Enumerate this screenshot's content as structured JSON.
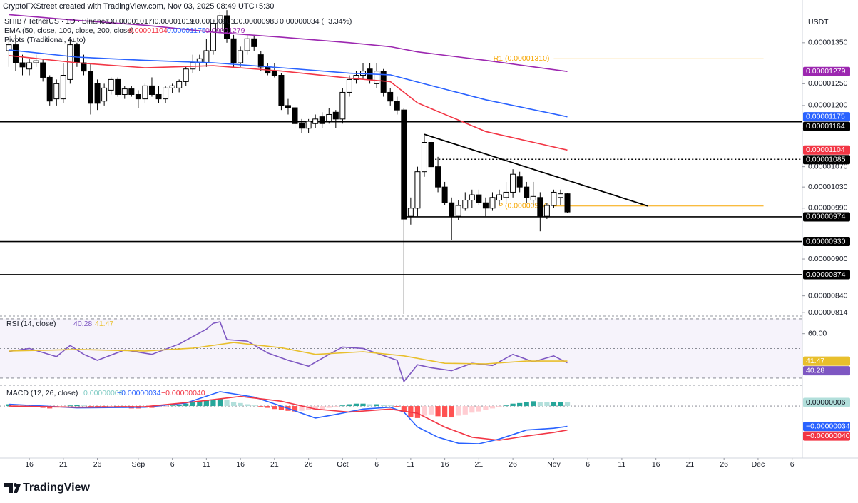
{
  "header": {
    "attribution": "CryptoFXStreet created with TradingView.com, Nov 03, 2025 08:49 UTC+5:30",
    "brand": "TradingView"
  },
  "chart_data": [
    {
      "type": "candlestick",
      "title": "SHIB / TetherUS · 1D · Binance",
      "currency": "USDT",
      "legend": [
        "O0.00001017",
        "H0.00001019",
        "L0.00000981",
        "C0.00000983",
        "−0.00000034 (−3.34%)"
      ],
      "log_scale": true,
      "ylim": [
        8.12e-06,
        1.443e-05
      ],
      "yticks": [
        {
          "value": 1.35e-05,
          "label": "0.00001350"
        },
        {
          "value": 1.25e-05,
          "label": "0.00001250"
        },
        {
          "value": 1.2e-05,
          "label": "0.00001200"
        },
        {
          "value": 1.15e-05,
          "label": "0.00001150"
        },
        {
          "value": 1.07e-05,
          "label": "0.00001070"
        },
        {
          "value": 1.03e-05,
          "label": "0.00001030"
        },
        {
          "value": 9.9e-06,
          "label": "0.00000990"
        },
        {
          "value": 9e-06,
          "label": "0.00000900"
        },
        {
          "value": 8.4e-06,
          "label": "0.00000840"
        },
        {
          "value": 8.14e-06,
          "label": "0.00000814"
        }
      ],
      "xlim": [
        -1.3,
        116.5
      ],
      "xticks": [
        {
          "value": 3,
          "label": "16"
        },
        {
          "value": 8,
          "label": "21"
        },
        {
          "value": 13,
          "label": "26"
        },
        {
          "value": 19,
          "label": "Sep"
        },
        {
          "value": 24,
          "label": "6"
        },
        {
          "value": 29,
          "label": "11"
        },
        {
          "value": 34,
          "label": "16"
        },
        {
          "value": 39,
          "label": "21"
        },
        {
          "value": 44,
          "label": "26"
        },
        {
          "value": 49,
          "label": "Oct"
        },
        {
          "value": 54,
          "label": "6"
        },
        {
          "value": 59,
          "label": "11"
        },
        {
          "value": 64,
          "label": "16"
        },
        {
          "value": 69,
          "label": "21"
        },
        {
          "value": 74,
          "label": "26"
        },
        {
          "value": 80,
          "label": "Nov"
        },
        {
          "value": 85,
          "label": "6"
        },
        {
          "value": 90,
          "label": "11"
        },
        {
          "value": 95,
          "label": "16"
        },
        {
          "value": 100,
          "label": "21"
        },
        {
          "value": 105,
          "label": "26"
        },
        {
          "value": 110,
          "label": "Dec"
        },
        {
          "value": 115,
          "label": "6"
        }
      ],
      "up_color": "#ffffff",
      "down_color": "#000000",
      "border_color": "#000000",
      "open": [
        1.33e-05,
        1.345e-05,
        1.3e-05,
        1.285e-05,
        1.3e-05,
        1.3e-05,
        1.265e-05,
        1.215e-05,
        1.215e-05,
        1.26e-05,
        1.345e-05,
        1.3e-05,
        1.28e-05,
        1.25e-05,
        1.21e-05,
        1.235e-05,
        1.26e-05,
        1.225e-05,
        1.238e-05,
        1.225e-05,
        1.215e-05,
        1.245e-05,
        1.225e-05,
        1.215e-05,
        1.24e-05,
        1.24e-05,
        1.255e-05,
        1.285e-05,
        1.3e-05,
        1.3e-05,
        1.33e-05,
        1.38e-05,
        1.42e-05,
        1.36e-05,
        1.3e-05,
        1.33e-05,
        1.36e-05,
        1.32e-05,
        1.29e-05,
        1.28e-05,
        1.27e-05,
        1.2e-05,
        1.195e-05,
        1.16e-05,
        1.15e-05,
        1.16e-05,
        1.175e-05,
        1.165e-05,
        1.185e-05,
        1.17e-05,
        1.23e-05,
        1.26e-05,
        1.27e-05,
        1.285e-05,
        1.25e-05,
        1.28e-05,
        1.23e-05,
        1.21e-05,
        1.19e-05,
        9.75e-06,
        9.9e-06,
        1.06e-05,
        1.12e-05,
        1.07e-05,
        1.03e-05,
        1e-05,
        9.75e-06,
        9.9e-06,
        1.005e-05,
        1.015e-05,
        1e-05,
        9.9e-06,
        1.005e-05,
        1.01e-05,
        1.02e-05,
        1.05e-05,
        1.03e-05,
        1.005e-05,
        1.01e-05,
        9.75e-06,
        9.95e-06,
        1.01e-05,
        1.017e-05
      ],
      "high": [
        1.36e-05,
        1.37e-05,
        1.32e-05,
        1.31e-05,
        1.32e-05,
        1.31e-05,
        1.27e-05,
        1.26e-05,
        1.3e-05,
        1.36e-05,
        1.35e-05,
        1.32e-05,
        1.3e-05,
        1.26e-05,
        1.25e-05,
        1.265e-05,
        1.265e-05,
        1.245e-05,
        1.245e-05,
        1.235e-05,
        1.25e-05,
        1.265e-05,
        1.245e-05,
        1.245e-05,
        1.25e-05,
        1.26e-05,
        1.29e-05,
        1.32e-05,
        1.32e-05,
        1.36e-05,
        1.41e-05,
        1.43e-05,
        1.435e-05,
        1.37e-05,
        1.34e-05,
        1.37e-05,
        1.37e-05,
        1.33e-05,
        1.3e-05,
        1.3e-05,
        1.275e-05,
        1.215e-05,
        1.2e-05,
        1.17e-05,
        1.17e-05,
        1.18e-05,
        1.185e-05,
        1.195e-05,
        1.19e-05,
        1.24e-05,
        1.27e-05,
        1.28e-05,
        1.3e-05,
        1.3e-05,
        1.3e-05,
        1.285e-05,
        1.24e-05,
        1.22e-05,
        1.195e-05,
        1.01e-05,
        1.07e-05,
        1.135e-05,
        1.125e-05,
        1.09e-05,
        1.04e-05,
        1.01e-05,
        1.005e-05,
        1.02e-05,
        1.025e-05,
        1.025e-05,
        1.01e-05,
        1.02e-05,
        1.025e-05,
        1.04e-05,
        1.065e-05,
        1.06e-05,
        1.04e-05,
        1.04e-05,
        1.02e-05,
        1e-05,
        1.025e-05,
        1.025e-05,
        1.019e-05
      ],
      "low": [
        1.29e-05,
        1.28e-05,
        1.27e-05,
        1.27e-05,
        1.29e-05,
        1.255e-05,
        1.2e-05,
        1.2e-05,
        1.205e-05,
        1.25e-05,
        1.29e-05,
        1.27e-05,
        1.18e-05,
        1.19e-05,
        1.2e-05,
        1.225e-05,
        1.22e-05,
        1.215e-05,
        1.22e-05,
        1.195e-05,
        1.205e-05,
        1.22e-05,
        1.205e-05,
        1.205e-05,
        1.228e-05,
        1.23e-05,
        1.245e-05,
        1.275e-05,
        1.28e-05,
        1.29e-05,
        1.32e-05,
        1.37e-05,
        1.35e-05,
        1.29e-05,
        1.29e-05,
        1.32e-05,
        1.33e-05,
        1.28e-05,
        1.27e-05,
        1.265e-05,
        1.19e-05,
        1.18e-05,
        1.15e-05,
        1.14e-05,
        1.14e-05,
        1.15e-05,
        1.15e-05,
        1.16e-05,
        1.15e-05,
        1.16e-05,
        1.22e-05,
        1.25e-05,
        1.26e-05,
        1.25e-05,
        1.24e-05,
        1.22e-05,
        1.2e-05,
        1.18e-05,
        8.12e-06,
        9.6e-06,
        9.75e-06,
        1.05e-05,
        1.06e-05,
        1.02e-05,
        9.95e-06,
        9.32e-06,
        9.68e-06,
        9.85e-06,
        9.9e-06,
        9.95e-06,
        9.75e-06,
        9.85e-06,
        9.95e-06,
        1e-05,
        1.01e-05,
        1.02e-05,
        1e-05,
        9.95e-06,
        9.48e-06,
        9.7e-06,
        9.9e-06,
        9.95e-06,
        9.81e-06
      ],
      "close": [
        1.345e-05,
        1.3e-05,
        1.29e-05,
        1.3e-05,
        1.305e-05,
        1.265e-05,
        1.21e-05,
        1.25e-05,
        1.27e-05,
        1.345e-05,
        1.3e-05,
        1.28e-05,
        1.205e-05,
        1.205e-05,
        1.24e-05,
        1.26e-05,
        1.225e-05,
        1.238e-05,
        1.225e-05,
        1.215e-05,
        1.245e-05,
        1.225e-05,
        1.215e-05,
        1.24e-05,
        1.245e-05,
        1.255e-05,
        1.285e-05,
        1.3e-05,
        1.31e-05,
        1.33e-05,
        1.4e-05,
        1.42e-05,
        1.36e-05,
        1.3e-05,
        1.33e-05,
        1.36e-05,
        1.34e-05,
        1.29e-05,
        1.275e-05,
        1.27e-05,
        1.2e-05,
        1.195e-05,
        1.16e-05,
        1.15e-05,
        1.165e-05,
        1.17e-05,
        1.16e-05,
        1.18e-05,
        1.17e-05,
        1.23e-05,
        1.26e-05,
        1.27e-05,
        1.28e-05,
        1.26e-05,
        1.28e-05,
        1.23e-05,
        1.21e-05,
        1.19e-05,
        9.7e-06,
        9.9e-06,
        1.06e-05,
        1.12e-05,
        1.07e-05,
        1.03e-05,
        1e-05,
        9.75e-06,
        9.95e-06,
        1.005e-05,
        1.015e-05,
        1e-05,
        9.9e-06,
        1.01e-05,
        1.015e-05,
        1.02e-05,
        1.055e-05,
        1.03e-05,
        1.01e-05,
        1.012e-05,
        9.75e-06,
        9.95e-06,
        1.02e-05,
        1.017e-05,
        9.83e-06
      ],
      "indicator_label": "EMA (50, close, 100, close, 200, close)",
      "series": [
        {
          "color": "#f23645",
          "last_label": "0.00001104",
          "x": [
            0,
            10,
            20,
            30,
            40,
            50,
            56,
            60,
            70,
            82
          ],
          "values": [
            1.318e-05,
            1.3e-05,
            1.288e-05,
            1.293e-05,
            1.28e-05,
            1.263e-05,
            1.255e-05,
            1.206e-05,
            1.143e-05,
            1.104e-05
          ]
        },
        {
          "color": "#2962ff",
          "last_label": "0.00001175",
          "x": [
            0,
            10,
            20,
            30,
            40,
            50,
            56,
            60,
            70,
            82
          ],
          "values": [
            1.332e-05,
            1.314e-05,
            1.306e-05,
            1.3e-05,
            1.288e-05,
            1.275e-05,
            1.271e-05,
            1.254e-05,
            1.213e-05,
            1.175e-05
          ]
        },
        {
          "color": "#9c27b0",
          "last_label": "0.00001279",
          "x": [
            0,
            10,
            20,
            30,
            40,
            50,
            56,
            60,
            70,
            82
          ],
          "values": [
            1.423e-05,
            1.408e-05,
            1.395e-05,
            1.377e-05,
            1.364e-05,
            1.35e-05,
            1.34e-05,
            1.327e-05,
            1.306e-05,
            1.279e-05
          ]
        }
      ],
      "levels": [
        {
          "value": 1.164e-05,
          "label": "0.00001164",
          "style": "solid"
        },
        {
          "value": 1.085e-05,
          "label": "0.00001085",
          "style": "dotted",
          "from": 62.6
        },
        {
          "value": 9.74e-06,
          "label": "0.00000974",
          "style": "solid",
          "from": 58.4
        },
        {
          "value": 9.3e-06,
          "label": "0.00000930",
          "style": "solid"
        },
        {
          "value": 8.74e-06,
          "label": "0.00000874",
          "style": "solid"
        }
      ],
      "pivots": {
        "label": "Pivots (Traditional, Auto)",
        "color": "#f7a600",
        "levels": [
          {
            "value": 1.31e-05,
            "label": "R1 (0.00001310)",
            "x": [
              80,
              110.8
            ]
          },
          {
            "value": 9.94e-06,
            "label": "P (0.00000994)",
            "x": [
              80,
              110.8
            ]
          }
        ]
      },
      "trendline": {
        "x": [
          61,
          93.8
        ],
        "values": [
          1.137e-05,
          9.94e-06
        ]
      }
    },
    {
      "type": "line",
      "title": "RSI (14, close)",
      "ylim": [
        26.6,
        71.9
      ],
      "yticks": [
        {
          "value": 60,
          "label": "60.00"
        }
      ],
      "band": [
        30,
        70
      ],
      "midline": 50,
      "band_color": "#7e57c2",
      "series": [
        {
          "color": "#7e57c2",
          "last_label": "40.28",
          "x": [
            0,
            3,
            7,
            9,
            11,
            13,
            17,
            21,
            25,
            29,
            30,
            31,
            32,
            35,
            38,
            41,
            44,
            47,
            49,
            52,
            57,
            58,
            60,
            62,
            65,
            68,
            71,
            74,
            77,
            80,
            82
          ],
          "values": [
            48,
            50,
            44.5,
            52,
            46,
            42,
            49,
            46,
            53,
            63,
            67,
            68,
            56,
            55,
            47,
            42,
            38,
            46,
            51,
            50,
            42,
            27.6,
            39,
            37,
            35,
            40,
            38.5,
            46,
            41,
            45,
            40.28
          ]
        },
        {
          "color": "#e8bf2c",
          "last_label": "41.47",
          "x": [
            0,
            10,
            20,
            27,
            33,
            40,
            45,
            52,
            58,
            64,
            70,
            76,
            82
          ],
          "values": [
            48.3,
            49.3,
            48.3,
            50.2,
            54,
            50.5,
            46,
            47.8,
            45,
            40,
            39.6,
            41.5,
            41.47
          ]
        }
      ]
    },
    {
      "type": "macd",
      "title": "MACD (12, 26, close)",
      "ylim": [
        -8.2e-07,
        3.1e-07
      ],
      "histogram": {
        "last_label": "0.00000006",
        "label_color": "#80cbc4",
        "colors": {
          "pos_up": "#26a69a",
          "pos_down": "#b2dfdb",
          "neg_down": "#ff5252",
          "neg_up": "#ffcdd2"
        },
        "values": [
          3e-08,
          2e-08,
          1e-08,
          -1e-08,
          -2e-08,
          -3e-08,
          -4e-08,
          -3e-08,
          -2e-08,
          1e-08,
          2e-08,
          1e-08,
          -1e-08,
          -3e-08,
          -3e-08,
          -2e-08,
          -3e-08,
          -3e-08,
          -4e-08,
          -4e-08,
          -3e-08,
          -3e-08,
          -2e-08,
          -1e-08,
          1e-08,
          2e-08,
          4e-08,
          6e-08,
          8e-08,
          9e-08,
          1.1e-07,
          1.2e-07,
          1e-07,
          7e-08,
          5e-08,
          3e-08,
          1e-08,
          -1e-08,
          -3e-08,
          -5e-08,
          -7e-08,
          -8e-08,
          -9e-08,
          -8e-08,
          -7e-08,
          -6e-08,
          -5e-08,
          -3e-08,
          -2e-08,
          1e-08,
          3e-08,
          4e-08,
          4e-08,
          3e-08,
          3e-08,
          2e-08,
          1e-08,
          -2e-08,
          -1e-07,
          -1.8e-07,
          -2e-07,
          -1.6e-07,
          -1.4e-07,
          -1.7e-07,
          -1.8e-07,
          -1.9e-07,
          -1.6e-07,
          -1.4e-07,
          -1.1e-07,
          -9e-08,
          -7e-08,
          -4e-08,
          -2e-08,
          1e-08,
          4e-08,
          5e-08,
          7e-08,
          8e-08,
          7e-08,
          6e-08,
          7e-08,
          7e-08,
          6e-08
        ]
      },
      "series": [
        {
          "color": "#2962ff",
          "last_label": "−0.00000034",
          "x": [
            0,
            10,
            20,
            26,
            31,
            36,
            40,
            45,
            48,
            52,
            56,
            58,
            60,
            63,
            66,
            69,
            72,
            76,
            80,
            82
          ],
          "values": [
            3e-08,
            -3e-08,
            -2e-08,
            5e-08,
            2.4e-07,
            1.5e-07,
            0,
            -2e-07,
            -1.4e-07,
            -5e-08,
            -2e-08,
            -1e-07,
            -3.5e-07,
            -5.2e-07,
            -6.2e-07,
            -6.3e-07,
            -5.5e-07,
            -4e-07,
            -3.7e-07,
            -3.4e-07
          ]
        },
        {
          "color": "#f23645",
          "last_label": "−0.00000040",
          "x": [
            0,
            10,
            20,
            28,
            34,
            40,
            45,
            50,
            56,
            60,
            64,
            68,
            72,
            76,
            80,
            82
          ],
          "values": [
            0,
            -2e-08,
            -1e-08,
            8e-08,
            1.6e-07,
            8e-08,
            -5e-08,
            -1e-07,
            -5e-08,
            -1.2e-07,
            -3.5e-07,
            -5.2e-07,
            -5.7e-07,
            -5e-07,
            -4.4e-07,
            -4e-07
          ]
        }
      ]
    }
  ]
}
